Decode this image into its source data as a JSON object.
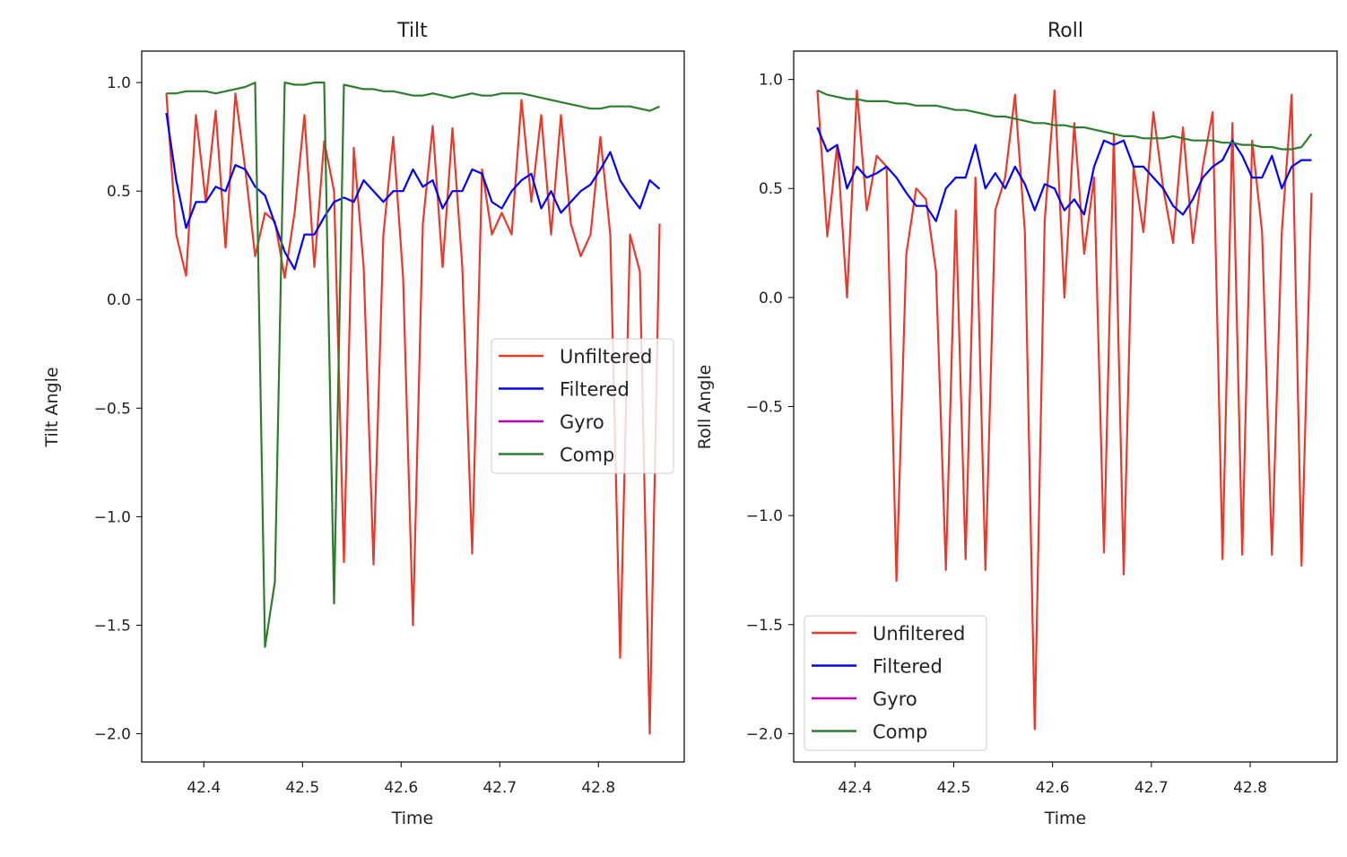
{
  "chart_data": [
    {
      "type": "line",
      "title": "Tilt",
      "xlabel": "Time",
      "ylabel": "Tilt Angle",
      "xlim": [
        42.337,
        42.887
      ],
      "ylim": [
        -2.13,
        1.145
      ],
      "xticks": [
        42.4,
        42.5,
        42.6,
        42.7,
        42.8
      ],
      "xtick_labels": [
        "42.4",
        "42.5",
        "42.6",
        "42.7",
        "42.8"
      ],
      "yticks": [
        1.0,
        0.5,
        0.0,
        -0.5,
        -1.0,
        -1.5,
        -2.0
      ],
      "ytick_labels": [
        "1.0",
        "0.5",
        "0.0",
        "−0.5",
        "−1.0",
        "−1.5",
        "−2.0"
      ],
      "grid": false,
      "legend_position": "center-right",
      "x_start": 42.362,
      "x_step": 0.01,
      "series": [
        {
          "name": "Unfiltered",
          "color": "#e8392b",
          "values": [
            0.95,
            0.3,
            0.11,
            0.85,
            0.45,
            0.87,
            0.24,
            0.95,
            0.6,
            0.2,
            0.4,
            0.36,
            0.1,
            0.4,
            0.85,
            0.15,
            0.73,
            0.5,
            -1.21,
            0.7,
            0.15,
            -1.22,
            0.3,
            0.75,
            0.1,
            -1.5,
            0.35,
            0.8,
            0.15,
            0.79,
            0.15,
            -1.17,
            0.6,
            0.3,
            0.4,
            0.3,
            0.92,
            0.45,
            0.85,
            0.3,
            0.85,
            0.35,
            0.2,
            0.3,
            0.75,
            0.3,
            -1.65,
            0.3,
            0.13,
            -2.0,
            0.35
          ]
        },
        {
          "name": "Filtered",
          "color": "#0000ff",
          "values": [
            0.86,
            0.55,
            0.33,
            0.45,
            0.45,
            0.52,
            0.5,
            0.62,
            0.6,
            0.52,
            0.48,
            0.35,
            0.22,
            0.14,
            0.3,
            0.3,
            0.38,
            0.45,
            0.47,
            0.45,
            0.55,
            0.5,
            0.45,
            0.5,
            0.5,
            0.6,
            0.52,
            0.55,
            0.42,
            0.5,
            0.5,
            0.6,
            0.58,
            0.45,
            0.42,
            0.5,
            0.55,
            0.58,
            0.42,
            0.5,
            0.4,
            0.45,
            0.5,
            0.53,
            0.6,
            0.68,
            0.55,
            0.48,
            0.42,
            0.55,
            0.51
          ]
        },
        {
          "name": "Gyro",
          "color": "#bf00bf",
          "values": []
        },
        {
          "name": "Comp",
          "color": "#2e7d2e",
          "values": [
            0.95,
            0.95,
            0.96,
            0.96,
            0.96,
            0.95,
            0.96,
            0.97,
            0.98,
            1.0,
            -1.6,
            -1.3,
            1.0,
            0.99,
            0.99,
            1.0,
            1.0,
            -1.4,
            0.99,
            0.98,
            0.97,
            0.97,
            0.96,
            0.96,
            0.95,
            0.94,
            0.94,
            0.95,
            0.94,
            0.93,
            0.94,
            0.95,
            0.94,
            0.94,
            0.95,
            0.95,
            0.95,
            0.94,
            0.93,
            0.92,
            0.91,
            0.9,
            0.89,
            0.88,
            0.88,
            0.89,
            0.89,
            0.89,
            0.88,
            0.87,
            0.89
          ]
        }
      ]
    },
    {
      "type": "line",
      "title": "Roll",
      "xlabel": "Time",
      "ylabel": "Roll Angle",
      "xlim": [
        42.338,
        42.888
      ],
      "ylim": [
        -2.13,
        1.13
      ],
      "xticks": [
        42.4,
        42.5,
        42.6,
        42.7,
        42.8
      ],
      "xtick_labels": [
        "42.4",
        "42.5",
        "42.6",
        "42.7",
        "42.8"
      ],
      "yticks": [
        1.0,
        0.5,
        0.0,
        -0.5,
        -1.0,
        -1.5,
        -2.0
      ],
      "ytick_labels": [
        "1.0",
        "0.5",
        "0.0",
        "−0.5",
        "−1.0",
        "−1.5",
        "−2.0"
      ],
      "grid": false,
      "legend_position": "lower-left",
      "x_start": 42.362,
      "x_step": 0.01,
      "series": [
        {
          "name": "Unfiltered",
          "color": "#e8392b",
          "values": [
            0.95,
            0.28,
            0.7,
            0.0,
            0.95,
            0.4,
            0.65,
            0.6,
            -1.3,
            0.2,
            0.5,
            0.45,
            0.12,
            -1.25,
            0.4,
            -1.2,
            0.55,
            -1.25,
            0.4,
            0.55,
            0.93,
            0.3,
            -1.98,
            0.35,
            0.95,
            0.0,
            0.8,
            0.2,
            0.55,
            -1.17,
            0.75,
            -1.27,
            0.6,
            0.3,
            0.85,
            0.5,
            0.25,
            0.78,
            0.25,
            0.6,
            0.85,
            -1.2,
            0.8,
            -1.18,
            0.72,
            0.3,
            -1.18,
            0.3,
            0.93,
            -1.23,
            0.48
          ]
        },
        {
          "name": "Filtered",
          "color": "#0000ff",
          "values": [
            0.78,
            0.67,
            0.7,
            0.5,
            0.6,
            0.55,
            0.57,
            0.6,
            0.55,
            0.48,
            0.42,
            0.42,
            0.35,
            0.5,
            0.55,
            0.55,
            0.7,
            0.5,
            0.57,
            0.5,
            0.6,
            0.52,
            0.4,
            0.52,
            0.5,
            0.4,
            0.45,
            0.38,
            0.6,
            0.72,
            0.7,
            0.72,
            0.6,
            0.6,
            0.55,
            0.5,
            0.42,
            0.38,
            0.45,
            0.55,
            0.6,
            0.63,
            0.72,
            0.65,
            0.55,
            0.55,
            0.65,
            0.5,
            0.6,
            0.63,
            0.63
          ]
        },
        {
          "name": "Gyro",
          "color": "#bf00bf",
          "values": []
        },
        {
          "name": "Comp",
          "color": "#2e7d2e",
          "values": [
            0.95,
            0.93,
            0.92,
            0.91,
            0.91,
            0.9,
            0.9,
            0.9,
            0.89,
            0.89,
            0.88,
            0.88,
            0.88,
            0.87,
            0.86,
            0.86,
            0.85,
            0.84,
            0.83,
            0.83,
            0.82,
            0.81,
            0.8,
            0.8,
            0.79,
            0.79,
            0.78,
            0.78,
            0.77,
            0.76,
            0.75,
            0.74,
            0.74,
            0.73,
            0.73,
            0.73,
            0.74,
            0.73,
            0.72,
            0.72,
            0.72,
            0.71,
            0.71,
            0.7,
            0.7,
            0.69,
            0.69,
            0.68,
            0.68,
            0.69,
            0.75
          ]
        }
      ]
    }
  ]
}
